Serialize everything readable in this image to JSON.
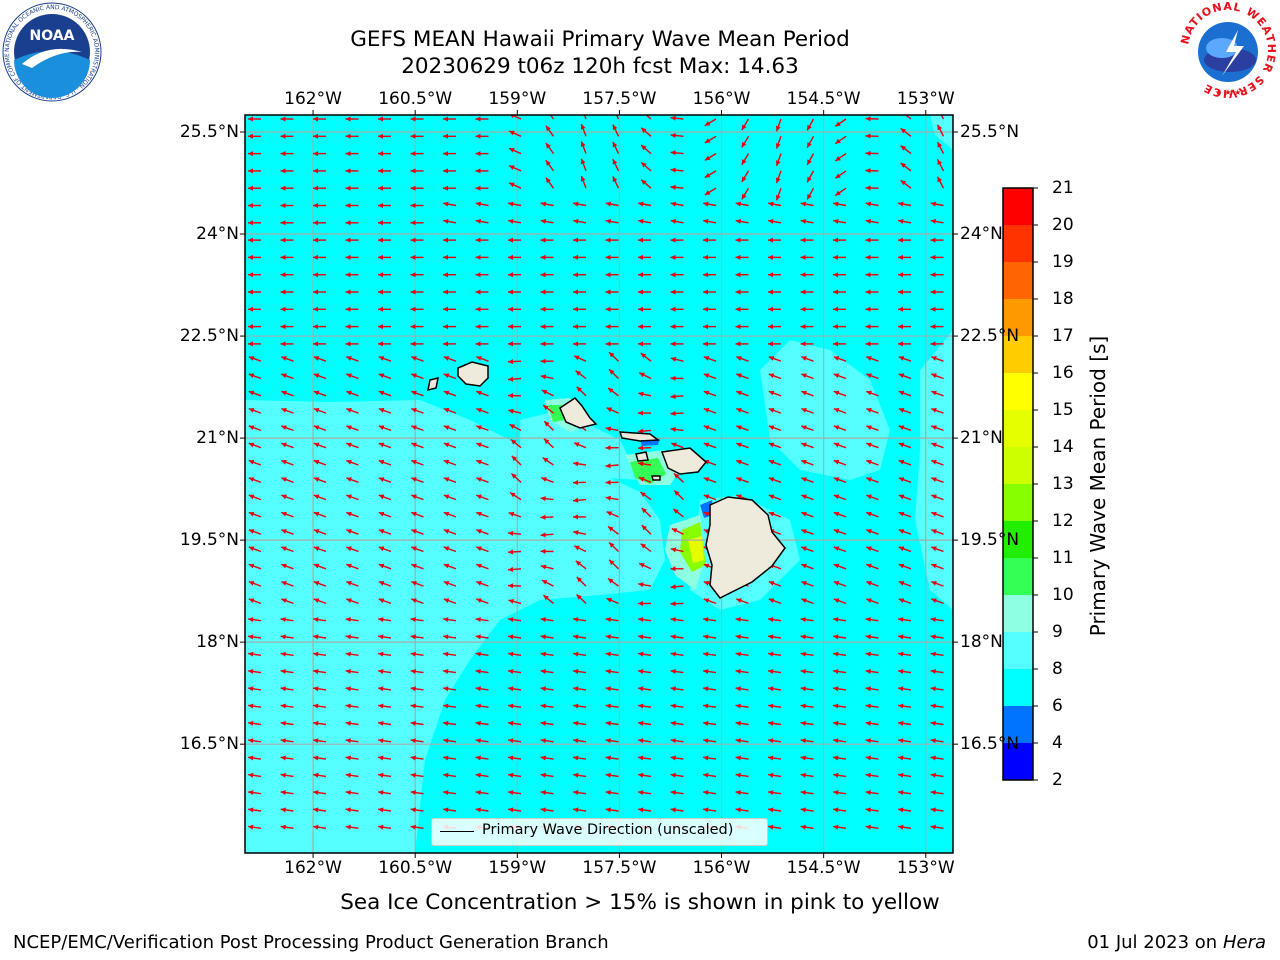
{
  "title": {
    "line1": "GEFS MEAN Hawaii Primary Wave Mean Period",
    "line2": "20230629 t06z 120h fcst   Max: 14.63"
  },
  "map": {
    "lon_labels": [
      "162°W",
      "160.5°W",
      "159°W",
      "157.5°W",
      "156°W",
      "154.5°W",
      "153°W"
    ],
    "lat_labels": [
      "25.5°N",
      "24°N",
      "22.5°N",
      "21°N",
      "19.5°N",
      "18°N",
      "16.5°N"
    ],
    "lon_values": [
      -162,
      -160.5,
      -159,
      -157.5,
      -156,
      -154.5,
      -153
    ],
    "lat_values": [
      25.5,
      24,
      22.5,
      21,
      19.5,
      18,
      16.5
    ],
    "lon_range": [
      -163,
      -152.6
    ],
    "lat_range": [
      14.9,
      25.75
    ],
    "legend_label": "Primary Wave Direction (unscaled)",
    "arrow_color": "#e8000b",
    "ocean_color": "#00ffff",
    "land_color": "#efebdc"
  },
  "colorbar": {
    "label": "Primary Wave Mean Period [s]",
    "ticks": [
      "2",
      "4",
      "6",
      "8",
      "9",
      "10",
      "11",
      "12",
      "13",
      "14",
      "15",
      "16",
      "17",
      "18",
      "19",
      "20",
      "21"
    ],
    "colors": [
      "#0000ff",
      "#0073ff",
      "#00ffff",
      "#55ffff",
      "#8fffe2",
      "#33ff55",
      "#22ee00",
      "#88ff00",
      "#ccff00",
      "#e6ff00",
      "#ffff00",
      "#ffcc00",
      "#ff9900",
      "#ff6600",
      "#ff3300",
      "#ff0000"
    ]
  },
  "subtitle": "Sea Ice Concentration > 15% is shown in pink to yellow",
  "footer": {
    "left": "NCEP/EMC/Verification Post Processing Product Generation Branch",
    "right_date": "01 Jul 2023 on ",
    "right_host": "Hera"
  },
  "logos": {
    "noaa_text": "NOAA",
    "noaa_ring": "NATIONAL OCEANIC AND ATMOSPHERIC ADMINISTRATION · U.S. DEPARTMENT OF COMMERCE",
    "nws_ring": "NATIONAL WEATHER SERVICE"
  }
}
